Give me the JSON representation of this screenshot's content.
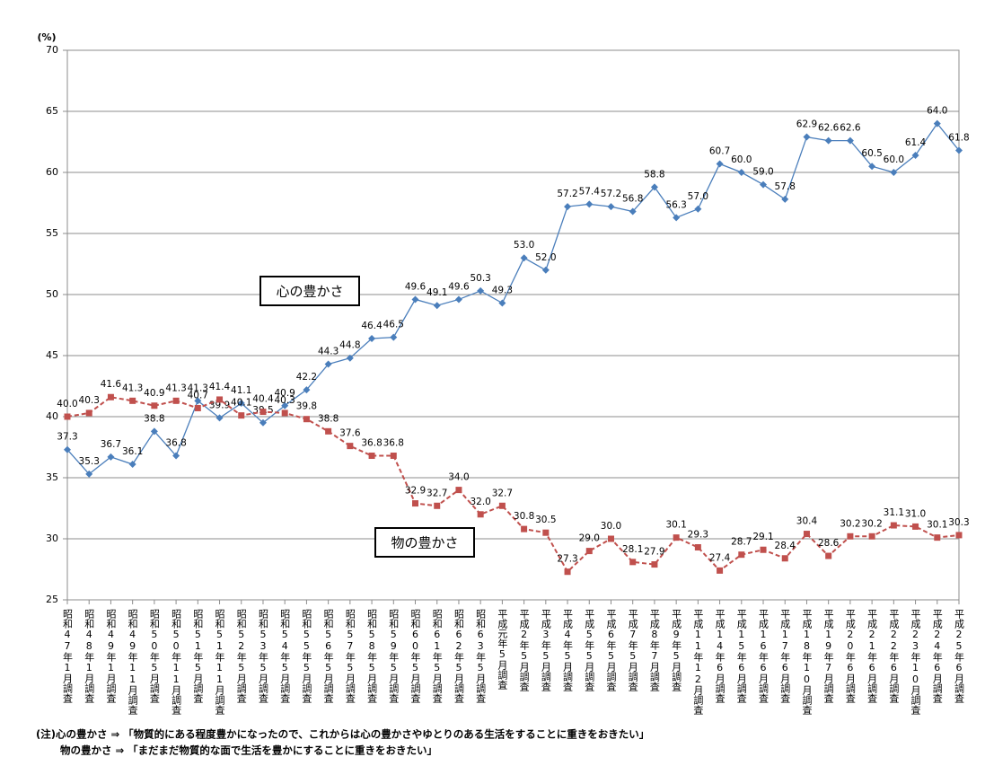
{
  "chart_data": {
    "type": "line",
    "y_label": "(%)",
    "categories": [
      "昭和47年1月調査",
      "昭和48年1月調査",
      "昭和49年1月調査",
      "昭和49年11月調査",
      "昭和50年5月調査",
      "昭和50年11月調査",
      "昭和51年5月調査",
      "昭和51年11月調査",
      "昭和52年5月調査",
      "昭和53年5月調査",
      "昭和54年5月調査",
      "昭和55年5月調査",
      "昭和56年5月調査",
      "昭和57年5月調査",
      "昭和58年5月調査",
      "昭和59年5月調査",
      "昭和60年5月調査",
      "昭和61年5月調査",
      "昭和62年5月調査",
      "昭和63年5月調査",
      "平成元年5月調査",
      "平成2年5月調査",
      "平成3年5月調査",
      "平成4年5月調査",
      "平成5年5月調査",
      "平成6年5月調査",
      "平成7年5月調査",
      "平成8年7月調査",
      "平成9年5月調査",
      "平成11年12月調査",
      "平成14年6月調査",
      "平成15年6月調査",
      "平成16年6月調査",
      "平成17年6月調査",
      "平成18年10月調査",
      "平成19年7月調査",
      "平成20年6月調査",
      "平成21年6月調査",
      "平成22年6月調査",
      "平成23年10月調査",
      "平成24年6月調査",
      "平成25年6月調査"
    ],
    "series": [
      {
        "name": "心の豊かさ",
        "color": "#4a7ebb",
        "marker": "diamond",
        "dashed": false,
        "values": [
          37.3,
          35.3,
          36.7,
          36.1,
          38.8,
          36.8,
          41.3,
          39.9,
          41.1,
          39.5,
          40.9,
          42.2,
          44.3,
          44.8,
          46.4,
          46.5,
          49.6,
          49.1,
          49.6,
          50.3,
          49.3,
          53.0,
          52.0,
          57.2,
          57.4,
          57.2,
          56.8,
          58.8,
          56.3,
          57.0,
          60.7,
          60.0,
          59.0,
          57.8,
          62.9,
          62.6,
          62.6,
          60.5,
          60.0,
          61.4,
          64.0,
          61.8
        ],
        "value_labels": [
          "37.3",
          "35.3",
          "36.7",
          "36.1",
          "38.8",
          "36.8",
          "41.3",
          "39.9",
          "41.1",
          "39.5",
          "40.9",
          "42.2",
          "44.3",
          "44.8",
          "46.4",
          "46.5",
          "49.6",
          "49.1",
          "49.6",
          "50.3",
          "49.3",
          "53.0",
          "52.0",
          "57.2",
          "57.4",
          "57.2",
          "56.8",
          "58.8",
          "56.3",
          "57.0",
          "60.7",
          "60.0",
          "59.0",
          "57.8",
          "62.9",
          "62.6",
          "62.6",
          "60.5",
          "60.0",
          "61.4",
          "64.0",
          "61.8"
        ]
      },
      {
        "name": "物の豊かさ",
        "color": "#c0504d",
        "marker": "square",
        "dashed": true,
        "values": [
          40.0,
          40.3,
          41.6,
          41.3,
          40.9,
          41.3,
          40.7,
          41.4,
          40.1,
          40.4,
          40.3,
          39.8,
          38.8,
          37.6,
          36.8,
          36.8,
          32.9,
          32.7,
          34.0,
          32.0,
          32.7,
          30.8,
          30.5,
          27.3,
          29.0,
          30.0,
          28.1,
          27.9,
          30.1,
          29.3,
          27.4,
          28.7,
          29.1,
          28.4,
          30.4,
          28.6,
          30.2,
          30.2,
          31.1,
          31.0,
          30.1,
          30.3
        ],
        "value_labels": [
          "40.0",
          "40.3",
          "41.6",
          "41.3",
          "40.9",
          "41.3",
          "40.7",
          "41.4",
          "40.1",
          "40.4",
          "40.3",
          "39.8",
          "38.8",
          "37.6",
          "36.8",
          "36.8",
          "32.9",
          "32.7",
          "34.0",
          "32.0",
          "32.7",
          "30.8",
          "30.5",
          "27.3",
          "29.0",
          "30.0",
          "28.1",
          "27.9",
          "30.1",
          "29.3",
          "27.4",
          "28.7",
          "29.1",
          "28.4",
          "30.4",
          "28.6",
          "30.2",
          "30.2",
          "31.1",
          "31.0",
          "30.1",
          "30.3"
        ]
      }
    ],
    "ylim": [
      25,
      70
    ],
    "yticks": [
      25,
      30,
      35,
      40,
      45,
      50,
      55,
      60,
      65,
      70
    ],
    "grid": true,
    "notes": [
      "(注)心の豊かさ ⇒ 「物質的にある程度豊かになったので、これからは心の豊かさやゆとりのある生活をすることに重きをおきたい」",
      "物の豊かさ ⇒ 「まだまだ物質的な面で生活を豊かにすることに重きをおきたい」"
    ]
  }
}
